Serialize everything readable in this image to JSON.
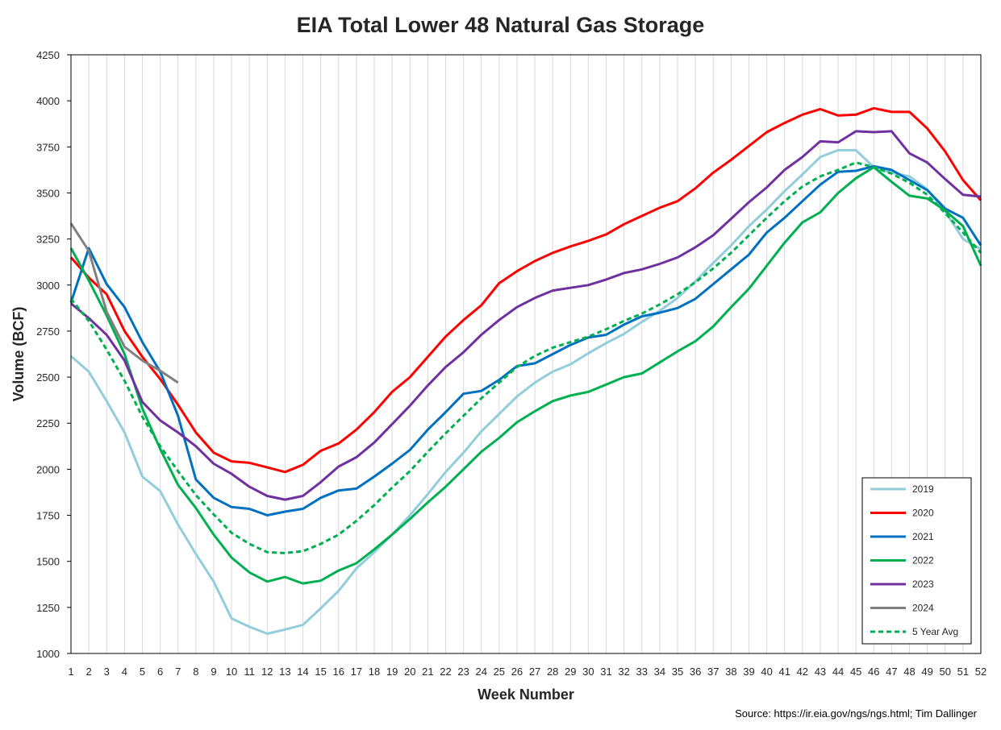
{
  "chart_data": {
    "type": "line",
    "title": "EIA Total Lower 48 Natural Gas Storage",
    "xlabel": "Week Number",
    "ylabel": "Volume (BCF)",
    "xlim": [
      1,
      52
    ],
    "ylim": [
      1000,
      4250
    ],
    "y_ticks": [
      1000,
      1250,
      1500,
      1750,
      2000,
      2250,
      2500,
      2750,
      3000,
      3250,
      3500,
      3750,
      4000,
      4250
    ],
    "x_ticks": [
      1,
      2,
      3,
      4,
      5,
      6,
      7,
      8,
      9,
      10,
      11,
      12,
      13,
      14,
      15,
      16,
      17,
      18,
      19,
      20,
      21,
      22,
      23,
      24,
      25,
      26,
      27,
      28,
      29,
      30,
      31,
      32,
      33,
      34,
      35,
      36,
      37,
      38,
      39,
      40,
      41,
      42,
      43,
      44,
      45,
      46,
      47,
      48,
      49,
      50,
      51,
      52
    ],
    "grid": "vertical",
    "legend_position": "bottom-right",
    "source": "Source: https://ir.eia.gov/ngs/ngs.html; Tim Dallinger",
    "series": [
      {
        "name": "2019",
        "color": "#92cddc",
        "dashed": false,
        "start_week": 1,
        "values": [
          2614,
          2530,
          2370,
          2200,
          1960,
          1882,
          1700,
          1540,
          1390,
          1190,
          1145,
          1107,
          1130,
          1155,
          1245,
          1340,
          1462,
          1550,
          1645,
          1750,
          1865,
          1985,
          2090,
          2205,
          2300,
          2395,
          2470,
          2530,
          2570,
          2630,
          2685,
          2735,
          2800,
          2860,
          2930,
          3020,
          3120,
          3215,
          3320,
          3410,
          3510,
          3600,
          3695,
          3732,
          3732,
          3640,
          3610,
          3590,
          3520,
          3400,
          3250,
          3195
        ]
      },
      {
        "name": "2020",
        "color": "#ff0000",
        "dashed": false,
        "start_week": 1,
        "values": [
          3150,
          3040,
          2950,
          2750,
          2610,
          2490,
          2350,
          2200,
          2090,
          2043,
          2035,
          2010,
          1985,
          2024,
          2100,
          2140,
          2215,
          2310,
          2420,
          2500,
          2610,
          2720,
          2810,
          2890,
          3010,
          3075,
          3130,
          3175,
          3210,
          3240,
          3275,
          3330,
          3375,
          3420,
          3455,
          3525,
          3610,
          3680,
          3755,
          3830,
          3880,
          3925,
          3955,
          3920,
          3925,
          3960,
          3940,
          3940,
          3850,
          3725,
          3570,
          3460
        ]
      },
      {
        "name": "2021",
        "color": "#0070c0",
        "dashed": false,
        "start_week": 1,
        "values": [
          2905,
          3200,
          3005,
          2880,
          2690,
          2530,
          2290,
          1945,
          1845,
          1795,
          1785,
          1750,
          1770,
          1785,
          1845,
          1885,
          1895,
          1960,
          2030,
          2105,
          2215,
          2310,
          2410,
          2425,
          2485,
          2560,
          2575,
          2625,
          2675,
          2715,
          2730,
          2785,
          2830,
          2850,
          2875,
          2925,
          3005,
          3085,
          3165,
          3285,
          3365,
          3455,
          3545,
          3615,
          3620,
          3645,
          3625,
          3570,
          3515,
          3415,
          3365,
          3215
        ]
      },
      {
        "name": "2022",
        "color": "#00b050",
        "dashed": false,
        "start_week": 1,
        "values": [
          3200,
          3025,
          2835,
          2625,
          2330,
          2110,
          1915,
          1790,
          1645,
          1520,
          1440,
          1390,
          1415,
          1380,
          1395,
          1450,
          1490,
          1565,
          1645,
          1730,
          1820,
          1905,
          2000,
          2095,
          2170,
          2255,
          2315,
          2370,
          2400,
          2420,
          2460,
          2500,
          2520,
          2580,
          2640,
          2695,
          2775,
          2880,
          2980,
          3105,
          3230,
          3340,
          3395,
          3500,
          3580,
          3640,
          3560,
          3485,
          3470,
          3405,
          3320,
          3105
        ]
      },
      {
        "name": "2023",
        "color": "#7030a0",
        "dashed": false,
        "start_week": 1,
        "values": [
          2900,
          2820,
          2730,
          2590,
          2365,
          2265,
          2200,
          2125,
          2030,
          1975,
          1905,
          1855,
          1835,
          1855,
          1930,
          2015,
          2065,
          2145,
          2245,
          2345,
          2455,
          2555,
          2635,
          2730,
          2810,
          2880,
          2930,
          2970,
          2985,
          3000,
          3030,
          3065,
          3085,
          3115,
          3150,
          3205,
          3270,
          3360,
          3450,
          3530,
          3625,
          3695,
          3780,
          3775,
          3835,
          3830,
          3835,
          3715,
          3665,
          3575,
          3490,
          3480
        ]
      },
      {
        "name": "2024",
        "color": "#808080",
        "dashed": false,
        "start_week": 1,
        "values": [
          3335,
          3185,
          2855,
          2665,
          2590,
          2535,
          2470
        ]
      },
      {
        "name": "5 Year Avg",
        "color": "#00b050",
        "dashed": true,
        "start_week": 1,
        "values": [
          2925,
          2805,
          2650,
          2480,
          2285,
          2125,
          1990,
          1860,
          1755,
          1655,
          1595,
          1550,
          1545,
          1555,
          1595,
          1645,
          1720,
          1805,
          1900,
          1990,
          2095,
          2195,
          2290,
          2385,
          2470,
          2555,
          2615,
          2660,
          2690,
          2720,
          2760,
          2805,
          2845,
          2895,
          2950,
          3015,
          3090,
          3175,
          3270,
          3365,
          3455,
          3535,
          3590,
          3625,
          3665,
          3640,
          3605,
          3555,
          3490,
          3390,
          3285,
          3175
        ]
      }
    ]
  }
}
